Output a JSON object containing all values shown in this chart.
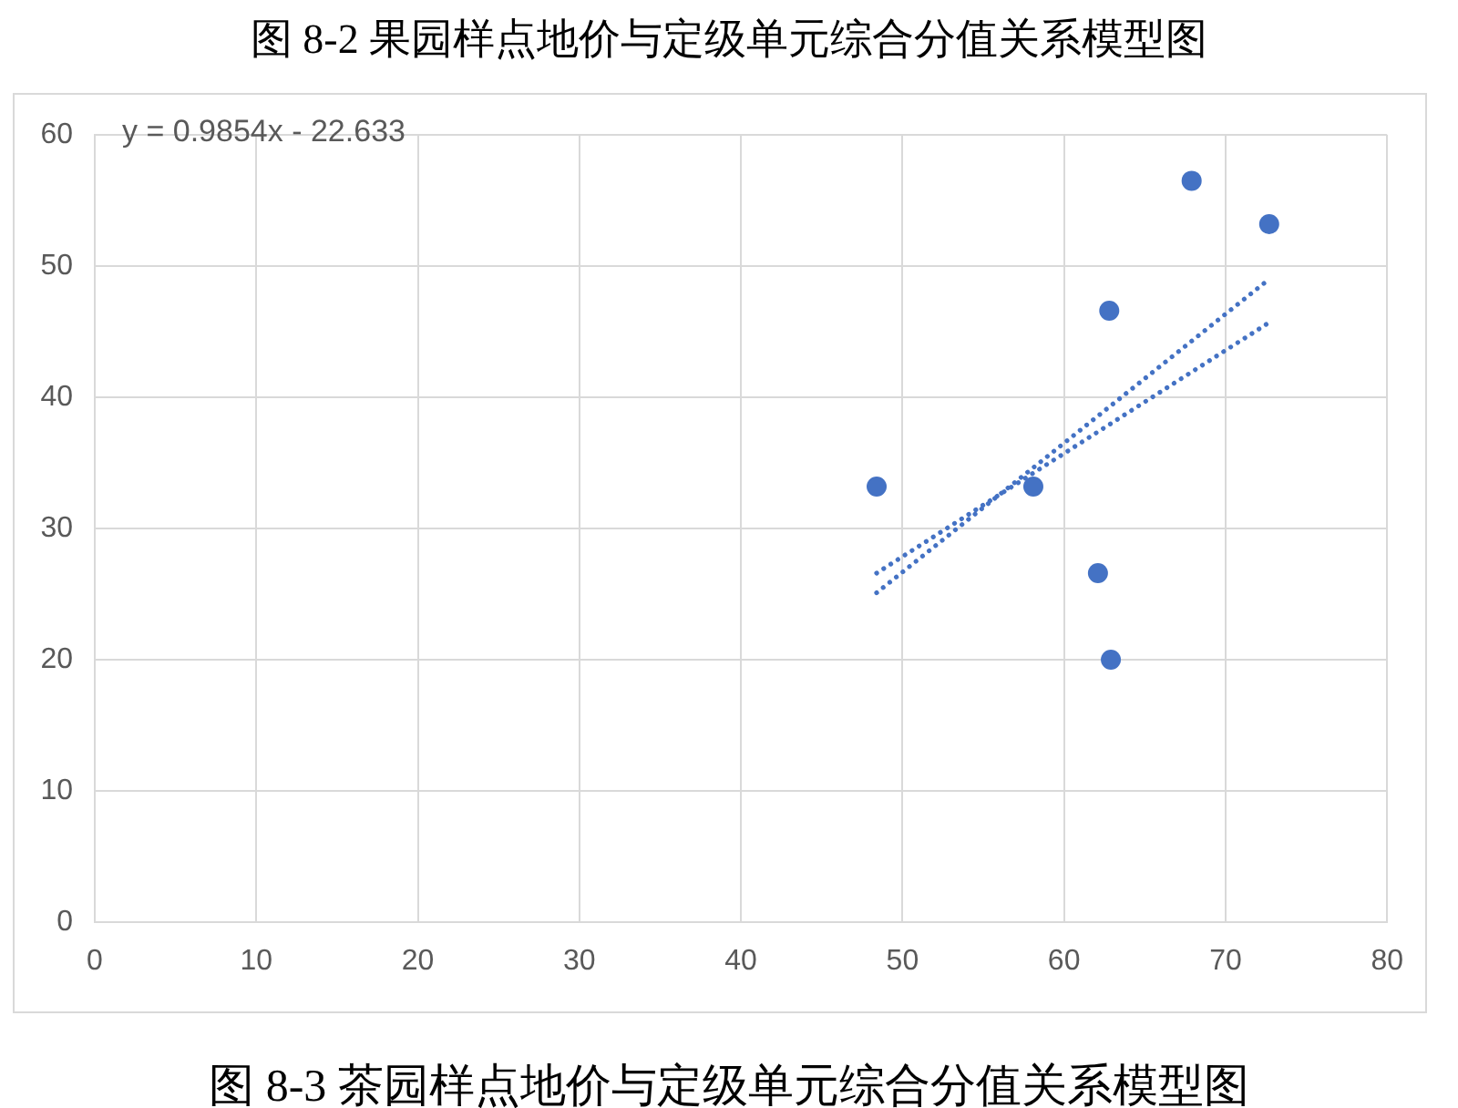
{
  "chart_data": {
    "type": "scatter",
    "title": "图 8-2 果园样点地价与定级单元综合分值关系模型图",
    "annotations": [
      "y = 0.9854x - 22.633",
      "图 8-3 茶园样点地价与定级单元综合分值关系模型图"
    ],
    "xlim": [
      0,
      80
    ],
    "xticks": [
      0,
      10,
      20,
      30,
      40,
      50,
      60,
      70,
      80
    ],
    "ylim": [
      0,
      60
    ],
    "yticks": [
      0,
      10,
      20,
      30,
      40,
      50,
      60
    ],
    "grid": true,
    "marker": "circle",
    "series": [
      {
        "color": "#4472c4",
        "x": [
          48.4,
          58.1,
          62.1,
          62.8,
          62.9,
          67.9,
          72.7
        ],
        "values": [
          33.2,
          33.2,
          26.6,
          46.6,
          20.0,
          56.5,
          53.2
        ]
      },
      {
        "type": "line",
        "color": "#4472c4",
        "line_style": "dotted",
        "marker": "none",
        "x": [
          48.4,
          72.7
        ],
        "values": [
          25.1,
          49.0
        ]
      },
      {
        "type": "line",
        "color": "#4472c4",
        "line_style": "dotted",
        "marker": "none",
        "x": [
          48.4,
          72.7
        ],
        "values": [
          26.6,
          45.7
        ]
      }
    ]
  }
}
